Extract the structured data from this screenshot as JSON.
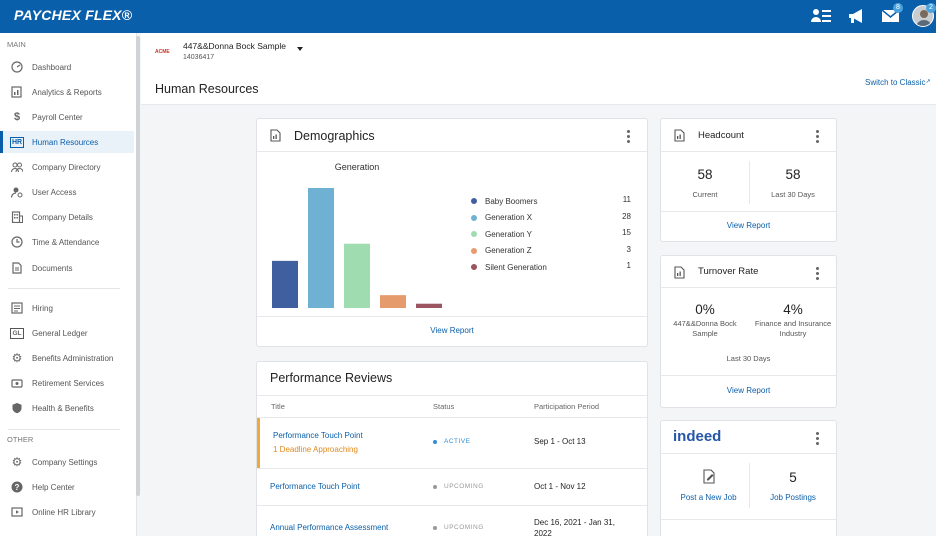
{
  "app": {
    "logo": "PAYCHEX FLEX®",
    "badges": {
      "messages": "8",
      "profile": "2"
    }
  },
  "sidebar": {
    "section_main": "MAIN",
    "section_other": "OTHER",
    "main_items": [
      {
        "label": "Dashboard",
        "icon": "dashboard-icon"
      },
      {
        "label": "Analytics & Reports",
        "icon": "analytics-icon"
      },
      {
        "label": "Payroll Center",
        "icon": "dollar-icon"
      },
      {
        "label": "Human Resources",
        "icon": "hr-icon",
        "icon_text": "HR",
        "active": true
      },
      {
        "label": "Company Directory",
        "icon": "people-icon"
      },
      {
        "label": "User Access",
        "icon": "user-access-icon"
      },
      {
        "label": "Company Details",
        "icon": "building-icon"
      },
      {
        "label": "Time & Attendance",
        "icon": "clock-icon"
      },
      {
        "label": "Documents",
        "icon": "document-icon"
      }
    ],
    "main_items_2": [
      {
        "label": "Hiring",
        "icon": "hiring-icon"
      },
      {
        "label": "General Ledger",
        "icon": "gl-icon",
        "icon_text": "GL"
      },
      {
        "label": "Benefits Administration",
        "icon": "gear-icon"
      },
      {
        "label": "Retirement Services",
        "icon": "retirement-icon"
      },
      {
        "label": "Health & Benefits",
        "icon": "shield-icon"
      }
    ],
    "other_items": [
      {
        "label": "Company Settings",
        "icon": "settings-icon"
      },
      {
        "label": "Help Center",
        "icon": "help-icon"
      },
      {
        "label": "Online HR Library",
        "icon": "video-icon"
      }
    ]
  },
  "header": {
    "company_logo_text": "ACME",
    "company_name": "447&&Donna Bock Sample",
    "company_id": "14036417",
    "switch_classic": "Switch to Classic",
    "page_title": "Human Resources"
  },
  "demographics": {
    "title": "Demographics",
    "view_report": "View Report",
    "chart_data": {
      "type": "bar",
      "title": "Generation",
      "categories": [
        "Baby Boomers",
        "Generation X",
        "Generation Y",
        "Generation Z",
        "Silent Generation"
      ],
      "values": [
        11,
        28,
        15,
        3,
        1
      ],
      "colors": [
        "#3f5f9f",
        "#6fb1d3",
        "#9fdcb0",
        "#e69b6c",
        "#9a5560"
      ],
      "legend": "right"
    }
  },
  "performance": {
    "title": "Performance Reviews",
    "columns": [
      "Title",
      "Status",
      "Participation Period"
    ],
    "rows": [
      {
        "title": "Performance Touch Point",
        "warning": "1 Deadline Approaching",
        "status": "ACTIVE",
        "status_color": "#2f8fd8",
        "period": "Sep 1 - Oct 13"
      },
      {
        "title": "Performance Touch Point",
        "warning": "",
        "status": "UPCOMING",
        "status_color": "#999999",
        "period": "Oct 1 - Nov 12"
      },
      {
        "title": "Annual Performance Assessment",
        "warning": "",
        "status": "UPCOMING",
        "status_color": "#999999",
        "period": "Dec 16, 2021 - Jan 31, 2022"
      }
    ]
  },
  "headcount": {
    "title": "Headcount",
    "current_value": "58",
    "current_label": "Current",
    "last30_value": "58",
    "last30_label": "Last 30 Days",
    "view_report": "View Report"
  },
  "turnover": {
    "title": "Turnover Rate",
    "company_value": "0%",
    "company_label": "447&&Donna Bock Sample",
    "industry_value": "4%",
    "industry_label": "Finance and Insurance Industry",
    "period": "Last 30 Days",
    "view_report": "View Report"
  },
  "indeed": {
    "brand": "indeed",
    "post_job": "Post a New Job",
    "postings_value": "5",
    "postings_label": "Job Postings"
  }
}
